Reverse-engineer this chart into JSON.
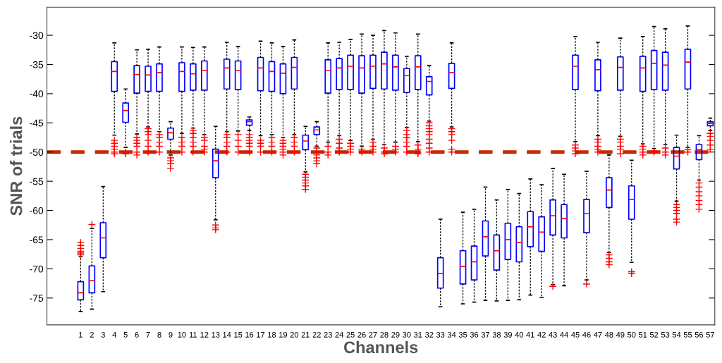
{
  "chart_data": {
    "type": "box",
    "xlabel": "Channels",
    "ylabel": "SNR of trials",
    "categories": [
      "1",
      "2",
      "3",
      "4",
      "5",
      "6",
      "7",
      "8",
      "9",
      "10",
      "11",
      "12",
      "13",
      "14",
      "15",
      "16",
      "17",
      "18",
      "19",
      "20",
      "21",
      "22",
      "23",
      "24",
      "25",
      "26",
      "27",
      "28",
      "29",
      "30",
      "31",
      "32",
      "33",
      "34",
      "35",
      "36",
      "37",
      "38",
      "39",
      "40",
      "41",
      "42",
      "43",
      "44",
      "45",
      "46",
      "47",
      "48",
      "49",
      "50",
      "51",
      "52",
      "53",
      "54",
      "55",
      "56",
      "57"
    ],
    "ylim": [
      -79.6,
      -25.2
    ],
    "yticks": [
      -75,
      -70,
      -65,
      -60,
      -55,
      -50,
      -45,
      -40,
      -35,
      -30
    ],
    "grid": false,
    "color": "#0000ff",
    "ref_lines": [
      {
        "axis": "y",
        "value": -50,
        "color": "#c42a00",
        "line_style": "dashed"
      }
    ],
    "boxes": [
      {
        "low": -77.3,
        "q1": -75.3,
        "median": -74.1,
        "q3": -72.2,
        "high": -67.9,
        "outliers": [
          -65.5,
          -66,
          -66.5,
          -67,
          -67.3,
          -67.6
        ]
      },
      {
        "low": -76.9,
        "q1": -74.1,
        "median": -72.0,
        "q3": -69.5,
        "high": -63.1,
        "outliers": [
          -62.4
        ]
      },
      {
        "low": -73.9,
        "q1": -68.1,
        "median": -64.7,
        "q3": -62.1,
        "high": -55.9
      },
      {
        "low": -47.1,
        "q1": -39.6,
        "median": -36.2,
        "q3": -34.5,
        "high": -31.3,
        "outliers": [
          -48,
          -48.5,
          -49,
          -49.5,
          -50,
          -50.3
        ]
      },
      {
        "low": -49.2,
        "q1": -44.9,
        "median": -42.9,
        "q3": -41.6,
        "high": -39.2,
        "outliers": [
          -50,
          -50.3
        ]
      },
      {
        "low": -46.9,
        "q1": -39.9,
        "median": -36.7,
        "q3": -35.2,
        "high": -32.5,
        "outliers": [
          -47.5,
          -48,
          -48.5,
          -49,
          -50,
          -50.5
        ]
      },
      {
        "low": -45.7,
        "q1": -39.6,
        "median": -36.8,
        "q3": -35.3,
        "high": -32.4,
        "outliers": [
          -46,
          -46.5,
          -47,
          -48,
          -49,
          -50
        ]
      },
      {
        "low": -46.5,
        "q1": -39.6,
        "median": -36.4,
        "q3": -34.9,
        "high": -32.0,
        "outliers": [
          -47,
          -47.5,
          -48.3,
          -49,
          -50
        ]
      },
      {
        "low": -50.5,
        "q1": -47.8,
        "median": -46.7,
        "q3": -45.9,
        "high": -44.8,
        "outliers": [
          -51,
          -51.5,
          -52,
          -52.8
        ]
      },
      {
        "low": -46.8,
        "q1": -39.6,
        "median": -36.2,
        "q3": -34.7,
        "high": -32.0,
        "outliers": [
          -47.5,
          -48.3,
          -49,
          -50
        ]
      },
      {
        "low": -45.9,
        "q1": -39.4,
        "median": -36.6,
        "q3": -34.9,
        "high": -32.1,
        "outliers": [
          -46.3,
          -46.8,
          -47.5,
          -48.3,
          -49,
          -50
        ]
      },
      {
        "low": -47.0,
        "q1": -39.4,
        "median": -36.0,
        "q3": -34.4,
        "high": -32.0,
        "outliers": [
          -47.5,
          -48,
          -49,
          -49.5,
          -50
        ]
      },
      {
        "low": -61.6,
        "q1": -54.4,
        "median": -51.5,
        "q3": -49.5,
        "high": -45.6,
        "outliers": [
          -62.5,
          -63,
          -63.3
        ]
      },
      {
        "low": -46.5,
        "q1": -39.2,
        "median": -35.6,
        "q3": -34.1,
        "high": -31.2,
        "outliers": [
          -47,
          -47.5,
          -48.3,
          -49,
          -50
        ]
      },
      {
        "low": -46.4,
        "q1": -39.3,
        "median": -36.0,
        "q3": -34.4,
        "high": -31.9,
        "outliers": [
          -47,
          -48,
          -49,
          -50
        ]
      },
      {
        "low": -46.3,
        "q1": -45.4,
        "median": -44.8,
        "q3": -44.5,
        "high": -44.0,
        "outliers": [
          -47,
          -47.5,
          -48,
          -48.5,
          -49,
          -50
        ]
      },
      {
        "low": -47.2,
        "q1": -39.5,
        "median": -35.6,
        "q3": -33.8,
        "high": -31.0,
        "outliers": [
          -48,
          -48.5,
          -49,
          -50
        ]
      },
      {
        "low": -47.0,
        "q1": -39.6,
        "median": -36.2,
        "q3": -34.5,
        "high": -31.3,
        "outliers": [
          -47.5,
          -48.3,
          -49,
          -50
        ]
      },
      {
        "low": -47.5,
        "q1": -40.0,
        "median": -36.5,
        "q3": -34.9,
        "high": -31.9,
        "outliers": [
          -48,
          -48.5,
          -49,
          -49.5,
          -50,
          -50.5
        ]
      },
      {
        "low": -47.0,
        "q1": -39.2,
        "median": -35.5,
        "q3": -33.8,
        "high": -30.8,
        "outliers": [
          -47.5,
          -48.3,
          -49,
          -50
        ]
      },
      {
        "low": -53.4,
        "q1": -49.6,
        "median": -48.1,
        "q3": -47.1,
        "high": -45.6,
        "outliers": [
          -53.8,
          -54.3,
          -54.8,
          -55.3,
          -55.8,
          -56.4
        ]
      },
      {
        "low": -49.0,
        "q1": -47.0,
        "median": -46.2,
        "q3": -45.7,
        "high": -44.8,
        "outliers": [
          -49.3,
          -50,
          -50.5,
          -51,
          -51.5,
          -52
        ]
      },
      {
        "low": -48.3,
        "q1": -39.9,
        "median": -36.0,
        "q3": -34.2,
        "high": -31.3,
        "outliers": [
          -49,
          -50,
          -50.5
        ]
      },
      {
        "low": -47.2,
        "q1": -39.3,
        "median": -35.6,
        "q3": -34.0,
        "high": -31.2,
        "outliers": [
          -47.8,
          -48.5,
          -49.3,
          -50
        ]
      },
      {
        "low": -48.0,
        "q1": -39.3,
        "median": -35.3,
        "q3": -33.4,
        "high": -30.7,
        "outliers": [
          -48.5,
          -49,
          -49.5,
          -50
        ]
      },
      {
        "low": -49.0,
        "q1": -39.9,
        "median": -35.6,
        "q3": -33.5,
        "high": -29.8,
        "outliers": [
          -49.5,
          -50
        ]
      },
      {
        "low": -47.8,
        "q1": -39.1,
        "median": -35.3,
        "q3": -33.4,
        "high": -30.0,
        "outliers": [
          -48.3,
          -49,
          -49.5,
          -50
        ]
      },
      {
        "low": -48.7,
        "q1": -39.2,
        "median": -34.9,
        "q3": -32.9,
        "high": -29.2,
        "outliers": [
          -49.3,
          -50,
          -50.3
        ]
      },
      {
        "low": -48.3,
        "q1": -39.4,
        "median": -35.4,
        "q3": -33.4,
        "high": -29.6,
        "outliers": [
          -49,
          -49.5,
          -50
        ]
      },
      {
        "low": -45.8,
        "q1": -39.8,
        "median": -36.9,
        "q3": -35.7,
        "high": -33.6,
        "outliers": [
          -46.3,
          -47,
          -47.5,
          -48.3,
          -49,
          -50
        ]
      },
      {
        "low": -48.2,
        "q1": -39.3,
        "median": -35.4,
        "q3": -33.5,
        "high": -29.8,
        "outliers": [
          -48.8,
          -49.5,
          -50,
          -50.3
        ]
      },
      {
        "low": -44.7,
        "q1": -40.2,
        "median": -37.9,
        "q3": -37.1,
        "high": -35.2,
        "outliers": [
          -45,
          -45.5,
          -46,
          -46.5,
          -47,
          -47.8,
          -48.5,
          -49.3,
          -50
        ]
      },
      {
        "low": -76.5,
        "q1": -73.3,
        "median": -70.8,
        "q3": -68.1,
        "high": -61.5
      },
      {
        "low": -45.7,
        "q1": -39.1,
        "median": -36.4,
        "q3": -34.8,
        "high": -31.3,
        "outliers": [
          -46,
          -46.5,
          -47,
          -48,
          -49.5,
          -50
        ]
      },
      {
        "low": -76.0,
        "q1": -72.6,
        "median": -69.6,
        "q3": -66.9,
        "high": -60.3
      },
      {
        "low": -75.7,
        "q1": -71.9,
        "median": -68.8,
        "q3": -66.1,
        "high": -59.8
      },
      {
        "low": -75.4,
        "q1": -67.8,
        "median": -64.5,
        "q3": -61.8,
        "high": -56.0
      },
      {
        "low": -75.5,
        "q1": -70.2,
        "median": -66.9,
        "q3": -64.2,
        "high": -58.2
      },
      {
        "low": -75.4,
        "q1": -68.4,
        "median": -65.0,
        "q3": -62.2,
        "high": -56.4
      },
      {
        "low": -75.3,
        "q1": -68.8,
        "median": -65.5,
        "q3": -62.8,
        "high": -57.1
      },
      {
        "low": -74.5,
        "q1": -66.2,
        "median": -62.8,
        "q3": -60.2,
        "high": -54.6
      },
      {
        "low": -74.9,
        "q1": -67.0,
        "median": -63.7,
        "q3": -61.1,
        "high": -55.6
      },
      {
        "low": -72.7,
        "q1": -64.2,
        "median": -60.9,
        "q3": -58.2,
        "high": -52.8,
        "outliers": [
          -73.0
        ]
      },
      {
        "low": -72.9,
        "q1": -64.7,
        "median": -61.4,
        "q3": -59.0,
        "high": -53.8
      },
      {
        "low": -48.2,
        "q1": -39.3,
        "median": -35.3,
        "q3": -33.4,
        "high": -30.2,
        "outliers": [
          -48.8,
          -49.3,
          -49.8,
          -50.3
        ]
      },
      {
        "low": -71.9,
        "q1": -63.8,
        "median": -60.5,
        "q3": -58.1,
        "high": -53.3,
        "outliers": [
          -72.6
        ]
      },
      {
        "low": -47.2,
        "q1": -39.5,
        "median": -35.9,
        "q3": -34.2,
        "high": -31.2,
        "outliers": [
          -47.8,
          -48.3,
          -49,
          -49.5,
          -50
        ]
      },
      {
        "low": -67.2,
        "q1": -59.5,
        "median": -56.5,
        "q3": -54.4,
        "high": -50.5,
        "outliers": [
          -67.6,
          -68.2,
          -68.8,
          -69.3
        ]
      },
      {
        "low": -47.3,
        "q1": -39.4,
        "median": -35.5,
        "q3": -33.7,
        "high": -30.5,
        "outliers": [
          -47.8,
          -48.3,
          -49,
          -49.5,
          -50.3
        ]
      },
      {
        "low": -68.9,
        "q1": -61.5,
        "median": -58.1,
        "q3": -55.8,
        "high": -51.4,
        "outliers": [
          -70.5,
          -70.8
        ]
      },
      {
        "low": -48.6,
        "q1": -39.6,
        "median": -35.6,
        "q3": -33.6,
        "high": -30.2,
        "outliers": [
          -49,
          -49.5,
          -50,
          -50.5
        ]
      },
      {
        "low": -49.4,
        "q1": -39.3,
        "median": -34.8,
        "q3": -32.6,
        "high": -28.5,
        "outliers": [
          -49.8,
          -50
        ]
      },
      {
        "low": -48.7,
        "q1": -39.4,
        "median": -35.1,
        "q3": -32.9,
        "high": -28.9,
        "outliers": [
          -49.3,
          -50,
          -50.5
        ]
      },
      {
        "low": -58.4,
        "q1": -52.9,
        "median": -50.7,
        "q3": -49.2,
        "high": -47.1,
        "outliers": [
          -59,
          -59.5,
          -60,
          -60.5,
          -61.5,
          -62
        ]
      },
      {
        "low": -49.2,
        "q1": -39.2,
        "median": -34.6,
        "q3": -32.4,
        "high": -28.4,
        "outliers": [
          -49.6,
          -50
        ]
      },
      {
        "low": -54.8,
        "q1": -51.3,
        "median": -49.6,
        "q3": -48.7,
        "high": -47.2,
        "outliers": [
          -55.3,
          -56,
          -56.8,
          -57.5,
          -58.3,
          -59,
          -59.8
        ]
      },
      {
        "low": -46.3,
        "q1": -45.5,
        "median": -45.1,
        "q3": -44.8,
        "high": -44.2,
        "outliers": [
          -46.8,
          -47.3,
          -48,
          -48.8,
          -49.5
        ]
      }
    ]
  }
}
